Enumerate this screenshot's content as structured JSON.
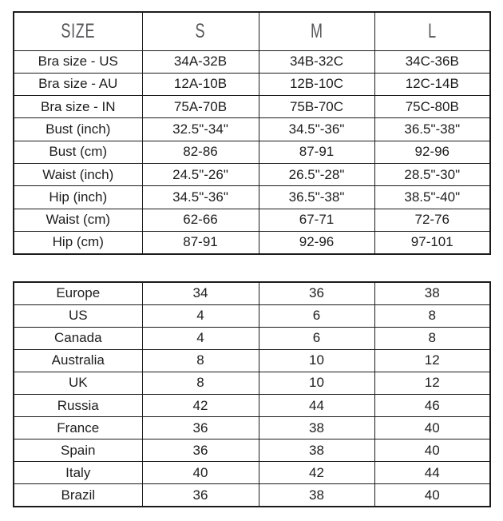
{
  "colors": {
    "background": "#ffffff",
    "border": "#1b1b1b",
    "header_text": "#57575a",
    "body_text": "#1d1d1d"
  },
  "chart_data": [
    {
      "type": "table",
      "name": "size-measurement-chart",
      "header": [
        "SIZE",
        "S",
        "M",
        "L"
      ],
      "rows": [
        {
          "label": "Bra size - US",
          "values": [
            "34A-32B",
            "34B-32C",
            "34C-36B"
          ]
        },
        {
          "label": "Bra size - AU",
          "values": [
            "12A-10B",
            "12B-10C",
            "12C-14B"
          ]
        },
        {
          "label": "Bra size - IN",
          "values": [
            "75A-70B",
            "75B-70C",
            "75C-80B"
          ]
        },
        {
          "label": "Bust (inch)",
          "values": [
            "32.5\"-34\"",
            "34.5\"-36\"",
            "36.5\"-38\""
          ]
        },
        {
          "label": "Bust (cm)",
          "values": [
            "82-86",
            "87-91",
            "92-96"
          ]
        },
        {
          "label": "Waist (inch)",
          "values": [
            "24.5\"-26\"",
            "26.5\"-28\"",
            "28.5\"-30\""
          ]
        },
        {
          "label": "Hip (inch)",
          "values": [
            "34.5\"-36\"",
            "36.5\"-38\"",
            "38.5\"-40\""
          ]
        },
        {
          "label": "Waist (cm)",
          "values": [
            "62-66",
            "67-71",
            "72-76"
          ]
        },
        {
          "label": "Hip (cm)",
          "values": [
            "87-91",
            "92-96",
            "97-101"
          ]
        }
      ]
    },
    {
      "type": "table",
      "name": "international-size-conversion-chart",
      "rows": [
        {
          "label": "Europe",
          "values": [
            "34",
            "36",
            "38"
          ]
        },
        {
          "label": "US",
          "values": [
            "4",
            "6",
            "8"
          ]
        },
        {
          "label": "Canada",
          "values": [
            "4",
            "6",
            "8"
          ]
        },
        {
          "label": "Australia",
          "values": [
            "8",
            "10",
            "12"
          ]
        },
        {
          "label": "UK",
          "values": [
            "8",
            "10",
            "12"
          ]
        },
        {
          "label": "Russia",
          "values": [
            "42",
            "44",
            "46"
          ]
        },
        {
          "label": "France",
          "values": [
            "36",
            "38",
            "40"
          ]
        },
        {
          "label": "Spain",
          "values": [
            "36",
            "38",
            "40"
          ]
        },
        {
          "label": "Italy",
          "values": [
            "40",
            "42",
            "44"
          ]
        },
        {
          "label": "Brazil",
          "values": [
            "36",
            "38",
            "40"
          ]
        }
      ]
    }
  ]
}
